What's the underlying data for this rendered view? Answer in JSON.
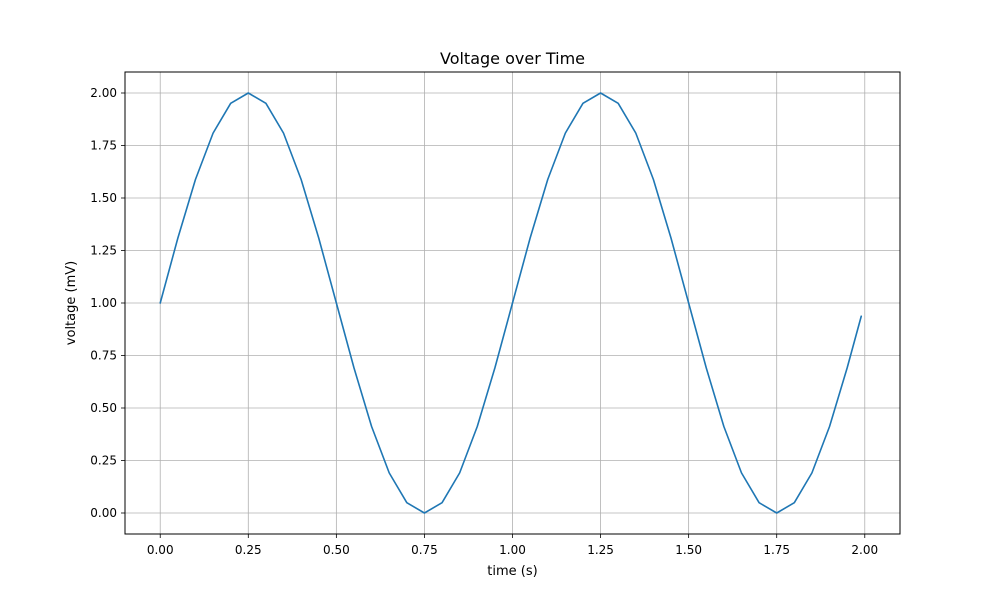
{
  "chart_data": {
    "type": "line",
    "title": "Voltage over Time",
    "xlabel": "time (s)",
    "ylabel": "voltage (mV)",
    "xlim": [
      -0.1,
      2.1
    ],
    "ylim": [
      -0.1,
      2.1
    ],
    "xticks": [
      0.0,
      0.25,
      0.5,
      0.75,
      1.0,
      1.25,
      1.5,
      1.75,
      2.0
    ],
    "xtick_labels": [
      "0.00",
      "0.25",
      "0.50",
      "0.75",
      "1.00",
      "1.25",
      "1.50",
      "1.75",
      "2.00"
    ],
    "yticks": [
      0.0,
      0.25,
      0.5,
      0.75,
      1.0,
      1.25,
      1.5,
      1.75,
      2.0
    ],
    "ytick_labels": [
      "0.00",
      "0.25",
      "0.50",
      "0.75",
      "1.00",
      "1.25",
      "1.50",
      "1.75",
      "2.00"
    ],
    "grid": true,
    "series": [
      {
        "color": "#1f77b4",
        "x": [
          0.0,
          0.05,
          0.1,
          0.15,
          0.2,
          0.25,
          0.3,
          0.35,
          0.4,
          0.45,
          0.5,
          0.55,
          0.6,
          0.65,
          0.7,
          0.75,
          0.8,
          0.85,
          0.9,
          0.95,
          1.0,
          1.05,
          1.1,
          1.15,
          1.2,
          1.25,
          1.3,
          1.35,
          1.4,
          1.45,
          1.5,
          1.55,
          1.6,
          1.65,
          1.7,
          1.75,
          1.8,
          1.85,
          1.9,
          1.95,
          1.99
        ],
        "y": [
          1.0,
          1.309,
          1.588,
          1.809,
          1.951,
          2.0,
          1.951,
          1.809,
          1.588,
          1.309,
          1.0,
          0.691,
          0.412,
          0.191,
          0.049,
          0.0,
          0.049,
          0.191,
          0.412,
          0.691,
          1.0,
          1.309,
          1.588,
          1.809,
          1.951,
          2.0,
          1.951,
          1.809,
          1.588,
          1.309,
          1.0,
          0.691,
          0.412,
          0.191,
          0.049,
          0.0,
          0.049,
          0.191,
          0.412,
          0.691,
          0.937
        ]
      }
    ]
  }
}
